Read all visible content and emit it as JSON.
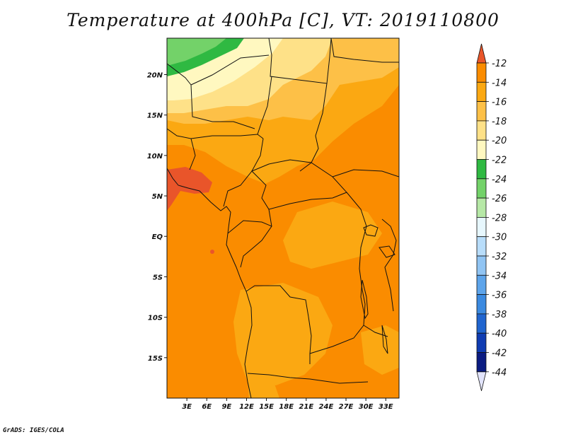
{
  "title": "Temperature at 400hPa [C], VT: 2019110800",
  "credit": "GrADS: IGES/COLA",
  "map": {
    "lat_ticks": [
      {
        "label": "20N",
        "value": 20
      },
      {
        "label": "15N",
        "value": 15
      },
      {
        "label": "10N",
        "value": 10
      },
      {
        "label": "5N",
        "value": 5
      },
      {
        "label": "EQ",
        "value": 0
      },
      {
        "label": "5S",
        "value": -5
      },
      {
        "label": "10S",
        "value": -10
      },
      {
        "label": "15S",
        "value": -15
      }
    ],
    "lon_ticks": [
      {
        "label": "3E",
        "value": 3
      },
      {
        "label": "6E",
        "value": 6
      },
      {
        "label": "9E",
        "value": 9
      },
      {
        "label": "12E",
        "value": 12
      },
      {
        "label": "15E",
        "value": 15
      },
      {
        "label": "18E",
        "value": 18
      },
      {
        "label": "21E",
        "value": 21
      },
      {
        "label": "24E",
        "value": 24
      },
      {
        "label": "27E",
        "value": 27
      },
      {
        "label": "30E",
        "value": 30
      },
      {
        "label": "33E",
        "value": 33
      }
    ],
    "lon_range": [
      0,
      35
    ],
    "lat_range": [
      -20,
      24.5
    ]
  },
  "colorbar": {
    "labels": [
      "-12",
      "-14",
      "-16",
      "-18",
      "-20",
      "-22",
      "-24",
      "-26",
      "-28",
      "-30",
      "-32",
      "-34",
      "-36",
      "-38",
      "-40",
      "-42",
      "-44"
    ],
    "colors": [
      "#e9552a",
      "#fa8c00",
      "#fba812",
      "#fdc047",
      "#fee188",
      "#fff8c0",
      "#2fb942",
      "#73d269",
      "#b6e8a6",
      "#e7f7fd",
      "#b8ddfa",
      "#90c4f3",
      "#5da4ea",
      "#3b8ae0",
      "#2065cf",
      "#0f3cb2",
      "#0b1c82",
      "#e2e4fb"
    ]
  }
}
